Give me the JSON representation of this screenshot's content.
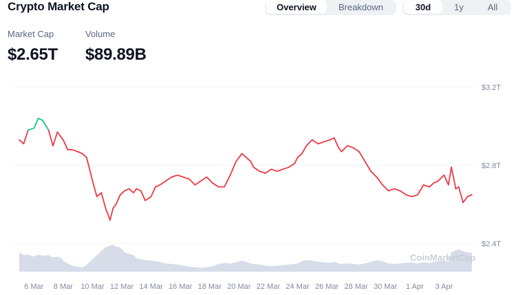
{
  "header": {
    "title": "Crypto Market Cap",
    "view_tabs": [
      "Overview",
      "Breakdown"
    ],
    "active_view": "Overview",
    "range_tabs": [
      "30d",
      "1y",
      "All"
    ],
    "active_range": "30d"
  },
  "stats": {
    "market_cap_label": "Market Cap",
    "market_cap_value": "$2.65T",
    "volume_label": "Volume",
    "volume_value": "$89.89B"
  },
  "watermark": "CoinMarketCap",
  "colors": {
    "up": "#16c784",
    "down": "#ea3943",
    "volume": "#cfd6e4",
    "grid": "#eff2f5"
  },
  "chart_data": {
    "type": "line",
    "y_ticks": [
      "$3.2T",
      "$2.8T",
      "$2.4T"
    ],
    "y_tick_values": [
      3.2,
      2.8,
      2.4
    ],
    "x_labels": [
      "6 Mar",
      "8 Mar",
      "10 Mar",
      "12 Mar",
      "14 Mar",
      "16 Mar",
      "18 Mar",
      "20 Mar",
      "22 Mar",
      "24 Mar",
      "26 Mar",
      "28 Mar",
      "30 Mar",
      "1 Apr",
      "3 Apr"
    ],
    "ylim": [
      2.4,
      3.2
    ],
    "x": [
      5.0,
      5.3,
      5.6,
      6.0,
      6.3,
      6.6,
      7.0,
      7.3,
      7.6,
      7.9,
      8.0,
      8.3,
      8.6,
      9.0,
      9.3,
      9.6,
      10.0,
      10.3,
      10.6,
      10.9,
      11.2,
      11.4,
      11.6,
      11.9,
      12.2,
      12.5,
      12.8,
      13.0,
      13.3,
      13.6,
      14.0,
      14.3,
      14.6,
      15.0,
      15.4,
      15.8,
      16.2,
      16.6,
      17.0,
      17.4,
      17.8,
      18.2,
      18.6,
      19.0,
      19.4,
      19.8,
      20.2,
      20.5,
      20.8,
      21.0,
      21.4,
      21.8,
      22.2,
      22.6,
      23.0,
      23.4,
      23.8,
      24.0,
      24.3,
      24.6,
      25.0,
      25.4,
      25.8,
      26.2,
      26.5,
      26.8,
      27.0,
      27.4,
      27.8,
      28.2,
      28.6,
      29.0,
      29.4,
      29.8,
      30.2,
      30.6,
      31.0,
      31.4,
      31.8,
      32.2,
      32.6,
      33.0,
      33.3,
      33.6,
      34.0,
      34.3,
      34.5,
      34.8,
      35.0,
      35.3,
      35.6,
      35.9
    ],
    "series": [
      {
        "values": [
          2.93,
          2.91,
          2.98,
          2.99,
          3.04,
          3.03,
          2.98,
          2.9,
          2.97,
          2.94,
          2.93,
          2.88,
          2.88,
          2.87,
          2.86,
          2.84,
          2.72,
          2.64,
          2.66,
          2.58,
          2.52,
          2.58,
          2.6,
          2.65,
          2.67,
          2.68,
          2.66,
          2.68,
          2.67,
          2.62,
          2.64,
          2.69,
          2.7,
          2.72,
          2.74,
          2.75,
          2.74,
          2.73,
          2.7,
          2.72,
          2.74,
          2.71,
          2.69,
          2.69,
          2.75,
          2.82,
          2.86,
          2.84,
          2.82,
          2.79,
          2.77,
          2.76,
          2.78,
          2.77,
          2.78,
          2.79,
          2.81,
          2.84,
          2.86,
          2.9,
          2.93,
          2.91,
          2.92,
          2.93,
          2.94,
          2.89,
          2.87,
          2.9,
          2.89,
          2.87,
          2.82,
          2.77,
          2.74,
          2.7,
          2.67,
          2.68,
          2.67,
          2.65,
          2.64,
          2.65,
          2.7,
          2.69,
          2.71,
          2.72,
          2.75,
          2.7,
          2.79,
          2.68,
          2.69,
          2.61,
          2.64,
          2.65
        ]
      }
    ],
    "volume": [
      0.7,
      0.6,
      0.62,
      0.55,
      0.62,
      0.58,
      0.6,
      0.52,
      0.55,
      0.48,
      0.4,
      0.3,
      0.22,
      0.18,
      0.15,
      0.25,
      0.45,
      0.6,
      0.75,
      0.9,
      0.95,
      0.98,
      0.92,
      0.88,
      0.7,
      0.65,
      0.6,
      0.5,
      0.45,
      0.42,
      0.4,
      0.38,
      0.36,
      0.3,
      0.28,
      0.26,
      0.22,
      0.18,
      0.16,
      0.14,
      0.16,
      0.2,
      0.28,
      0.32,
      0.3,
      0.34,
      0.4,
      0.36,
      0.3,
      0.28,
      0.26,
      0.22,
      0.2,
      0.22,
      0.24,
      0.26,
      0.28,
      0.3,
      0.38,
      0.42,
      0.4,
      0.36,
      0.34,
      0.32,
      0.36,
      0.3,
      0.28,
      0.3,
      0.28,
      0.26,
      0.3,
      0.36,
      0.42,
      0.38,
      0.3,
      0.28,
      0.3,
      0.32,
      0.34,
      0.3,
      0.34,
      0.32,
      0.36,
      0.38,
      0.4,
      0.36,
      0.7,
      0.78,
      0.82,
      0.75,
      0.7,
      0.68
    ]
  }
}
